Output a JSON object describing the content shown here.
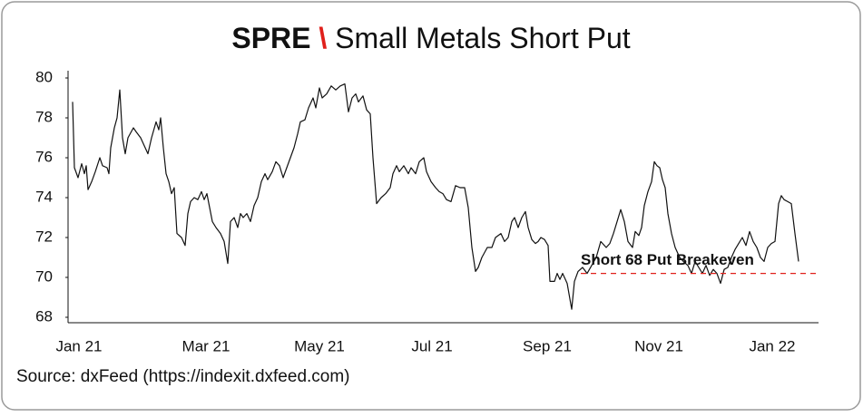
{
  "chart_data": {
    "type": "line",
    "title_ticker": "SPRE",
    "title_separator": "\\",
    "title_text": "Small Metals Short Put",
    "source": "Source: dxFeed (https://indexit.dxfeed.com)",
    "color": "#111111",
    "separator_color": "#e0201b",
    "x": [
      0,
      2,
      6,
      10,
      13,
      15,
      17,
      21,
      25,
      30,
      33,
      38,
      40,
      42,
      46,
      49,
      52,
      55,
      58,
      61,
      67,
      70,
      75,
      80,
      83,
      87,
      92,
      95,
      97,
      100,
      103,
      106,
      109,
      112,
      115,
      120,
      124,
      127,
      130,
      134,
      138,
      142,
      145,
      148,
      151,
      154,
      158,
      163,
      167,
      171,
      174,
      178,
      182,
      185,
      188,
      192,
      196,
      200,
      204,
      208,
      212,
      215,
      220,
      224,
      228,
      232,
      236,
      240,
      244,
      248,
      251,
      256,
      260,
      265,
      268,
      272,
      275,
      280,
      285,
      290,
      295,
      300,
      304,
      308,
      312,
      315,
      320,
      324,
      328,
      331,
      335,
      340,
      345,
      350,
      353,
      357,
      360,
      365,
      370,
      373,
      378,
      382,
      387,
      390,
      395,
      400,
      404,
      408,
      412,
      417,
      422,
      427,
      432,
      436,
      440,
      444,
      447,
      451,
      457,
      462,
      466,
      472,
      476,
      480,
      484,
      487,
      491,
      495,
      499,
      502,
      506,
      510,
      513,
      516,
      520,
      524,
      526,
      531,
      534,
      537,
      540,
      545,
      550,
      553,
      557,
      562,
      567,
      572,
      577,
      582,
      588,
      592,
      596,
      600,
      604,
      608,
      612,
      617,
      620,
      624,
      627,
      630,
      634,
      638,
      641,
      644,
      647,
      650,
      653,
      656,
      660,
      664,
      669,
      673,
      678,
      682,
      686,
      690,
      694,
      698,
      702,
      706,
      710,
      714,
      718,
      722,
      726,
      730,
      734,
      738,
      742,
      746,
      750,
      754,
      758,
      762,
      766,
      770,
      774,
      778,
      781,
      784,
      788,
      792,
      796,
      800
    ],
    "values": [
      78.8,
      75.5,
      75.0,
      75.7,
      75.2,
      75.6,
      74.4,
      74.8,
      75.3,
      76.0,
      75.6,
      75.5,
      75.2,
      76.5,
      77.5,
      78.0,
      79.4,
      77.0,
      76.2,
      77.0,
      77.5,
      77.3,
      77.0,
      76.5,
      76.2,
      77.0,
      77.8,
      77.4,
      78.0,
      76.5,
      75.2,
      74.8,
      74.2,
      74.5,
      72.2,
      72.0,
      71.6,
      73.2,
      73.8,
      74.0,
      73.9,
      74.3,
      73.9,
      74.2,
      73.5,
      72.8,
      72.5,
      72.2,
      71.8,
      70.7,
      72.8,
      73.0,
      72.5,
      73.2,
      73.0,
      73.2,
      72.8,
      73.6,
      74.0,
      74.8,
      75.2,
      74.9,
      75.3,
      75.8,
      75.6,
      75.0,
      75.5,
      76.0,
      76.5,
      77.2,
      77.8,
      77.9,
      78.5,
      79.0,
      78.5,
      79.5,
      79.0,
      79.2,
      79.6,
      79.4,
      79.6,
      79.7,
      78.3,
      79.0,
      79.2,
      78.8,
      79.1,
      78.4,
      78.2,
      76.0,
      73.7,
      74.0,
      74.2,
      74.5,
      75.2,
      75.6,
      75.3,
      75.6,
      75.2,
      75.5,
      75.2,
      75.8,
      76.0,
      75.3,
      74.8,
      74.5,
      74.3,
      74.2,
      73.9,
      73.8,
      74.6,
      74.5,
      74.5,
      73.5,
      71.5,
      70.3,
      70.5,
      71.0,
      71.5,
      71.5,
      72.0,
      72.2,
      71.8,
      72.0,
      72.8,
      73.0,
      72.5,
      73.0,
      73.3,
      72.5,
      71.9,
      71.7,
      71.8,
      72.0,
      71.9,
      71.6,
      69.8,
      69.8,
      70.2,
      69.9,
      70.2,
      69.7,
      68.4,
      69.8,
      70.3,
      70.5,
      70.2,
      70.6,
      71.0,
      71.8,
      71.5,
      71.7,
      72.2,
      72.8,
      73.4,
      72.8,
      71.8,
      71.5,
      72.3,
      72.1,
      72.5,
      73.6,
      74.3,
      74.8,
      75.8,
      75.6,
      75.5,
      74.9,
      74.5,
      73.2,
      72.2,
      71.5,
      71.0,
      70.8,
      70.6,
      70.2,
      70.8,
      70.5,
      70.2,
      70.6,
      70.1,
      70.4,
      70.2,
      69.7,
      70.4,
      70.5,
      71.0,
      71.4,
      71.7,
      72.0,
      71.6,
      72.3,
      71.8,
      71.5,
      71.0,
      70.8,
      71.5,
      71.7,
      71.8,
      73.7,
      74.1,
      73.9,
      73.8,
      73.7,
      72.2,
      70.8
    ],
    "xlim": [
      -5,
      822
    ],
    "xticks": [
      {
        "value": 7,
        "label": "Jan 21"
      },
      {
        "value": 147,
        "label": "Mar 21"
      },
      {
        "value": 272,
        "label": "May 21"
      },
      {
        "value": 396,
        "label": "Jul 21"
      },
      {
        "value": 523,
        "label": "Sep 21"
      },
      {
        "value": 646,
        "label": "Nov 21"
      },
      {
        "value": 771,
        "label": "Jan 22"
      }
    ],
    "ylim": [
      67.7,
      80.3
    ],
    "yticks": [
      68,
      70,
      72,
      74,
      76,
      78,
      80
    ],
    "grid": false,
    "breakeven": {
      "label": "Short 68 Put Breakeven",
      "value": 70.2,
      "x_start": 560,
      "color": "#e0201b"
    }
  }
}
